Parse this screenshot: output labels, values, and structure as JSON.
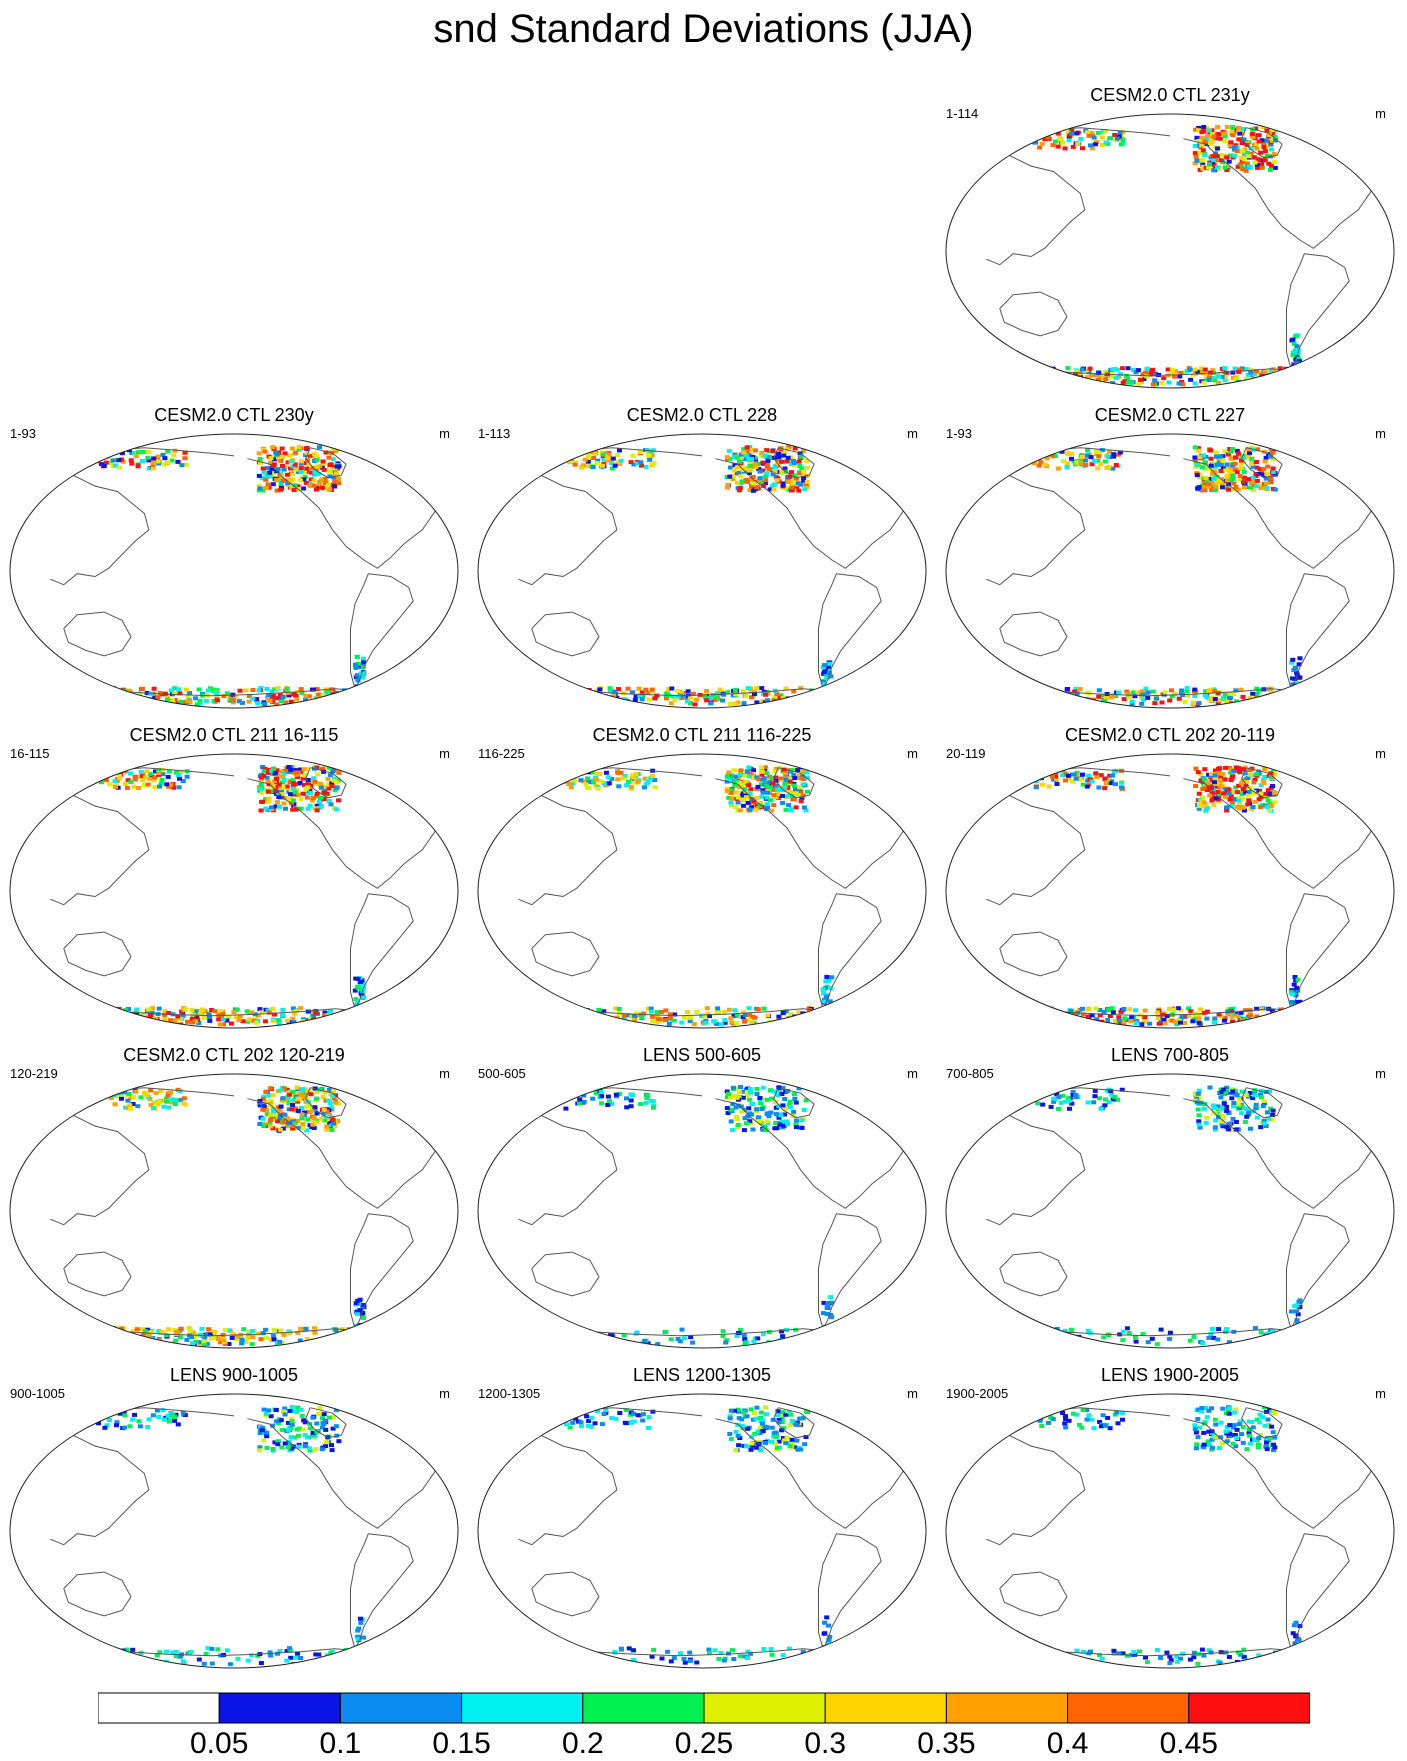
{
  "title": "snd Standard Deviations (JJA)",
  "panels": [
    {
      "title": "CESM2.0 CTL 231y",
      "range": "1-114",
      "units": "m",
      "col": 2,
      "row": 0,
      "arctic": 1.0,
      "antarctic": 0.9,
      "strength": 1.0
    },
    {
      "title": "CESM2.0 CTL 230y",
      "range": "1-93",
      "units": "m",
      "col": 0,
      "row": 1,
      "arctic": 1.0,
      "antarctic": 1.0,
      "strength": 1.0
    },
    {
      "title": "CESM2.0 CTL 228",
      "range": "1-113",
      "units": "m",
      "col": 1,
      "row": 1,
      "arctic": 1.0,
      "antarctic": 0.8,
      "strength": 0.9
    },
    {
      "title": "CESM2.0 CTL 227",
      "range": "1-93",
      "units": "m",
      "col": 2,
      "row": 1,
      "arctic": 1.0,
      "antarctic": 0.8,
      "strength": 0.9
    },
    {
      "title": "CESM2.0 CTL 211 16-115",
      "range": "16-115",
      "units": "m",
      "col": 0,
      "row": 2,
      "arctic": 1.0,
      "antarctic": 0.9,
      "strength": 1.0
    },
    {
      "title": "CESM2.0 CTL 211 116-225",
      "range": "116-225",
      "units": "m",
      "col": 1,
      "row": 2,
      "arctic": 1.0,
      "antarctic": 0.7,
      "strength": 0.8
    },
    {
      "title": "CESM2.0 CTL 202 20-119",
      "range": "20-119",
      "units": "m",
      "col": 2,
      "row": 2,
      "arctic": 1.0,
      "antarctic": 0.9,
      "strength": 1.0
    },
    {
      "title": "CESM2.0 CTL 202 120-219",
      "range": "120-219",
      "units": "m",
      "col": 0,
      "row": 3,
      "arctic": 1.0,
      "antarctic": 0.8,
      "strength": 0.8
    },
    {
      "title": "LENS 500-605",
      "range": "500-605",
      "units": "m",
      "col": 1,
      "row": 3,
      "arctic": 0.6,
      "antarctic": 0.3,
      "strength": 0.35
    },
    {
      "title": "LENS 700-805",
      "range": "700-805",
      "units": "m",
      "col": 2,
      "row": 3,
      "arctic": 0.6,
      "antarctic": 0.3,
      "strength": 0.35
    },
    {
      "title": "LENS 900-1005",
      "range": "900-1005",
      "units": "m",
      "col": 0,
      "row": 4,
      "arctic": 0.55,
      "antarctic": 0.3,
      "strength": 0.3
    },
    {
      "title": "LENS 1200-1305",
      "range": "1200-1305",
      "units": "m",
      "col": 1,
      "row": 4,
      "arctic": 0.55,
      "antarctic": 0.3,
      "strength": 0.3
    },
    {
      "title": "LENS 1900-2005",
      "range": "1900-2005",
      "units": "m",
      "col": 2,
      "row": 4,
      "arctic": 0.55,
      "antarctic": 0.3,
      "strength": 0.3
    }
  ],
  "colorbar": {
    "labels": [
      "0.05",
      "0.1",
      "0.15",
      "0.2",
      "0.25",
      "0.3",
      "0.35",
      "0.4",
      "0.45"
    ],
    "colors": [
      "#ffffff",
      "#0a14e6",
      "#0a8cf0",
      "#00f0f0",
      "#00f050",
      "#dcf000",
      "#ffd200",
      "#ffa000",
      "#ff6400",
      "#ff0f0f"
    ]
  },
  "colors": {
    "coastline": "#555555",
    "frame": "#222222"
  }
}
